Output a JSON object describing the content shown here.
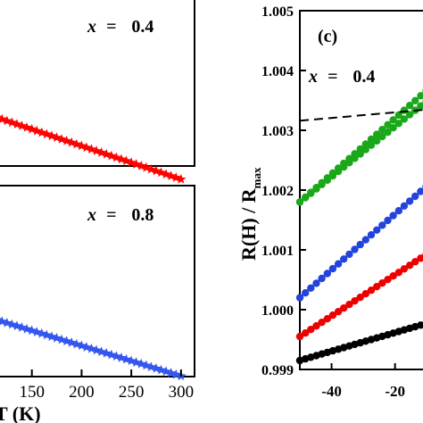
{
  "chart_data": [
    {
      "id": "left-top",
      "type": "line",
      "annotation_prefix": "x",
      "annotation_eq": "=",
      "annotation_value": "0.4",
      "xlim": [
        100,
        310
      ],
      "series": [
        {
          "color": "#ff0000",
          "marker": "star",
          "x": [
            105,
            110,
            115,
            120,
            125,
            130,
            135,
            140,
            145,
            150,
            155,
            160,
            165,
            170,
            175,
            180,
            185,
            190,
            195,
            200,
            205,
            210,
            215,
            220,
            225,
            230,
            235,
            240,
            245,
            250,
            255,
            260,
            265,
            270,
            275,
            280,
            285,
            290,
            295,
            300
          ],
          "y": [
            0.6,
            0.589,
            0.578,
            0.567,
            0.556,
            0.545,
            0.534,
            0.523,
            0.512,
            0.501,
            0.49,
            0.479,
            0.468,
            0.457,
            0.446,
            0.435,
            0.424,
            0.413,
            0.402,
            0.391,
            0.38,
            0.369,
            0.358,
            0.347,
            0.336,
            0.325,
            0.314,
            0.303,
            0.292,
            0.281,
            0.27,
            0.259,
            0.248,
            0.237,
            0.226,
            0.215,
            0.204,
            0.193,
            0.182,
            0.171
          ]
        }
      ]
    },
    {
      "id": "left-bottom",
      "type": "line",
      "annotation_prefix": "x",
      "annotation_eq": "=",
      "annotation_value": "0.8",
      "xlabel": "T (K)",
      "xlim": [
        100,
        310
      ],
      "xticks": [
        150,
        200,
        250,
        300
      ],
      "series": [
        {
          "color": "#3355ee",
          "marker": "star",
          "x": [
            105,
            110,
            115,
            120,
            125,
            130,
            135,
            140,
            145,
            150,
            155,
            160,
            165,
            170,
            175,
            180,
            185,
            190,
            195,
            200,
            205,
            210,
            215,
            220,
            225,
            230,
            235,
            240,
            245,
            250,
            255,
            260,
            265,
            270,
            275,
            280,
            285,
            290,
            295,
            300
          ],
          "y": [
            0.57,
            0.56,
            0.55,
            0.54,
            0.53,
            0.52,
            0.51,
            0.5,
            0.49,
            0.48,
            0.47,
            0.46,
            0.45,
            0.44,
            0.43,
            0.42,
            0.41,
            0.4,
            0.39,
            0.38,
            0.37,
            0.36,
            0.35,
            0.34,
            0.33,
            0.32,
            0.31,
            0.3,
            0.29,
            0.28,
            0.27,
            0.26,
            0.25,
            0.24,
            0.23,
            0.22,
            0.21,
            0.2,
            0.19,
            0.18
          ]
        }
      ]
    },
    {
      "id": "panel-c",
      "type": "line",
      "panel_label": "(c)",
      "annotation_prefix": "x",
      "annotation_eq": "=",
      "annotation_value": "0.4",
      "ylabel_main": "R(H) / R",
      "ylabel_sub": "max",
      "xlim": [
        -50,
        -5
      ],
      "ylim": [
        0.999,
        1.005
      ],
      "xticks": [
        -40,
        -20
      ],
      "yticks": [
        0.999,
        1.0,
        1.001,
        1.002,
        1.003,
        1.004,
        1.005
      ],
      "ytick_labels": [
        "0.999",
        "1.000",
        "1.001",
        "1.002",
        "1.003",
        "1.004",
        "1.005"
      ],
      "series": [
        {
          "color": "#1aa81a",
          "marker": "circle",
          "x": [
            -50,
            -5
          ],
          "y": [
            1.0018,
            1.0039
          ]
        },
        {
          "color": "#1aa81a",
          "marker": "circle",
          "x": [
            -50,
            -5
          ],
          "y": [
            1.0018,
            1.0037
          ]
        },
        {
          "color": "#2244dd",
          "marker": "circle",
          "x": [
            -50,
            -5
          ],
          "y": [
            1.0002,
            1.0023
          ]
        },
        {
          "color": "#ee0000",
          "marker": "circle",
          "x": [
            -50,
            -5
          ],
          "y": [
            0.99955,
            1.0011
          ]
        },
        {
          "color": "#000000",
          "marker": "circle",
          "x": [
            -50,
            -5
          ],
          "y": [
            0.99915,
            0.99985
          ]
        },
        {
          "color": "#000000",
          "style": "dashed",
          "marker": "none",
          "x": [
            -50,
            -5
          ],
          "y": [
            1.00316,
            1.00337
          ]
        }
      ]
    }
  ]
}
